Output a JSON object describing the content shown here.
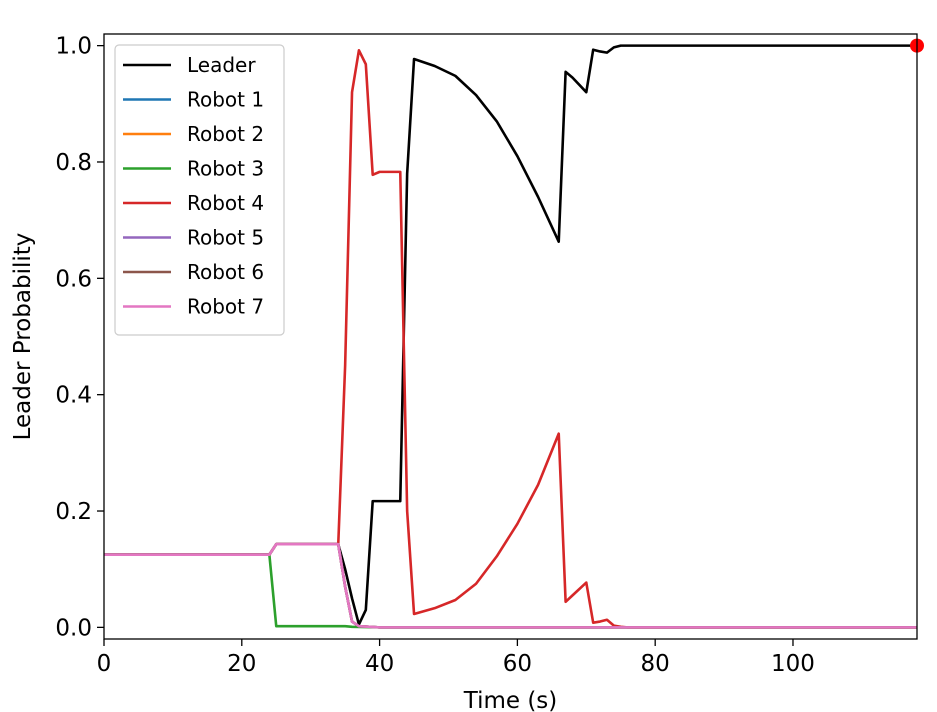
{
  "chart_data": {
    "type": "line",
    "xlabel": "Time (s)",
    "ylabel": "Leader Probability",
    "xlim": [
      0,
      118
    ],
    "ylim": [
      -0.02,
      1.02
    ],
    "xticks": [
      0,
      20,
      40,
      60,
      80,
      100
    ],
    "yticks": [
      0.0,
      0.2,
      0.4,
      0.6,
      0.8,
      1.0
    ],
    "xtick_labels": [
      "0",
      "20",
      "40",
      "60",
      "80",
      "100"
    ],
    "ytick_labels": [
      "0.0",
      "0.2",
      "0.4",
      "0.6",
      "0.8",
      "1.0"
    ],
    "grid": false,
    "legend_position": "upper-left",
    "series": [
      {
        "name": "Leader",
        "color": "#000000",
        "x": [
          0,
          24,
          25,
          26,
          34,
          35,
          36,
          37,
          38,
          39,
          42,
          43,
          44,
          45,
          48,
          51,
          54,
          57,
          60,
          63,
          66,
          67,
          68,
          70,
          71,
          72,
          73,
          74,
          75,
          76,
          80,
          90,
          100,
          110,
          118
        ],
        "y": [
          0.125,
          0.125,
          0.143,
          0.143,
          0.143,
          0.1,
          0.05,
          0.005,
          0.03,
          0.217,
          0.217,
          0.217,
          0.78,
          0.977,
          0.965,
          0.948,
          0.915,
          0.87,
          0.81,
          0.74,
          0.663,
          0.955,
          0.945,
          0.92,
          0.993,
          0.99,
          0.988,
          0.997,
          1.0,
          1.0,
          1.0,
          1.0,
          1.0,
          1.0,
          1.0
        ]
      },
      {
        "name": "Robot 1",
        "color": "#1f77b4",
        "x": [
          0,
          24,
          25,
          26,
          34,
          35,
          36,
          37,
          40,
          60,
          80,
          100,
          118
        ],
        "y": [
          0.125,
          0.125,
          0.143,
          0.143,
          0.143,
          0.07,
          0.01,
          0.002,
          0.0,
          0.0,
          0.0,
          0.0,
          0.0
        ]
      },
      {
        "name": "Robot 2",
        "color": "#ff7f0e",
        "x": [
          0,
          24,
          25,
          26,
          34,
          35,
          36,
          37,
          40,
          60,
          80,
          100,
          118
        ],
        "y": [
          0.125,
          0.125,
          0.143,
          0.143,
          0.143,
          0.07,
          0.01,
          0.002,
          0.0,
          0.0,
          0.0,
          0.0,
          0.0
        ]
      },
      {
        "name": "Robot 3",
        "color": "#2ca02c",
        "x": [
          0,
          24,
          25,
          30,
          35,
          36,
          40,
          60,
          80,
          100,
          118
        ],
        "y": [
          0.125,
          0.125,
          0.002,
          0.002,
          0.002,
          0.001,
          0.0,
          0.0,
          0.0,
          0.0,
          0.0
        ]
      },
      {
        "name": "Robot 4",
        "color": "#d62728",
        "x": [
          0,
          24,
          25,
          26,
          34,
          35,
          36,
          37,
          38,
          39,
          40,
          42,
          43,
          44,
          45,
          48,
          51,
          54,
          57,
          60,
          63,
          66,
          67,
          68,
          70,
          71,
          72,
          73,
          74,
          75,
          76,
          80,
          100,
          118
        ],
        "y": [
          0.125,
          0.125,
          0.143,
          0.143,
          0.143,
          0.45,
          0.92,
          0.992,
          0.968,
          0.778,
          0.783,
          0.783,
          0.783,
          0.2,
          0.023,
          0.033,
          0.047,
          0.075,
          0.122,
          0.178,
          0.245,
          0.333,
          0.044,
          0.055,
          0.077,
          0.008,
          0.01,
          0.013,
          0.003,
          0.001,
          0.0,
          0.0,
          0.0,
          0.0
        ]
      },
      {
        "name": "Robot 5",
        "color": "#9467bd",
        "x": [
          0,
          24,
          25,
          26,
          34,
          35,
          36,
          37,
          40,
          60,
          80,
          100,
          118
        ],
        "y": [
          0.125,
          0.125,
          0.143,
          0.143,
          0.143,
          0.07,
          0.01,
          0.002,
          0.0,
          0.0,
          0.0,
          0.0,
          0.0
        ]
      },
      {
        "name": "Robot 6",
        "color": "#8c564b",
        "x": [
          0,
          24,
          25,
          26,
          34,
          35,
          36,
          37,
          40,
          60,
          80,
          100,
          118
        ],
        "y": [
          0.125,
          0.125,
          0.143,
          0.143,
          0.143,
          0.07,
          0.01,
          0.002,
          0.0,
          0.0,
          0.0,
          0.0,
          0.0
        ]
      },
      {
        "name": "Robot 7",
        "color": "#e377c2",
        "x": [
          0,
          24,
          25,
          26,
          34,
          35,
          36,
          37,
          40,
          60,
          80,
          100,
          118
        ],
        "y": [
          0.125,
          0.125,
          0.143,
          0.143,
          0.143,
          0.07,
          0.01,
          0.002,
          0.0,
          0.0,
          0.0,
          0.0,
          0.0
        ]
      }
    ],
    "marker": {
      "x": 118,
      "y": 1.0,
      "color": "#ff0000"
    }
  }
}
